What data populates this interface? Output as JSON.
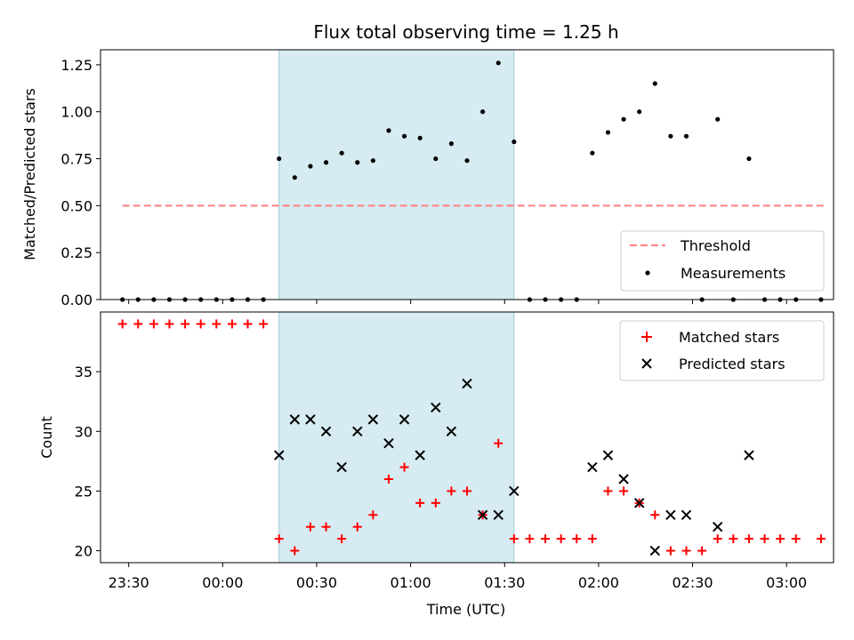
{
  "chart_data": [
    {
      "type": "scatter",
      "title": "Flux total observing time = 1.25 h",
      "ylabel": "Matched/Predicted stars",
      "xlabel": "",
      "xlim": [
        "23:21",
        "03:15"
      ],
      "ylim": [
        0,
        1.33
      ],
      "x_ticks": [
        "23:30",
        "00:00",
        "00:30",
        "01:00",
        "01:30",
        "02:00",
        "02:30",
        "03:00"
      ],
      "y_ticks": [
        "0.00",
        "0.25",
        "0.50",
        "0.75",
        "1.00",
        "1.25"
      ],
      "shaded_interval": [
        "00:18",
        "01:33"
      ],
      "legend_position": "lower right",
      "series": [
        {
          "name": "Threshold",
          "style": "dashed line",
          "color": "#ff7f7f",
          "points": [
            [
              "23:28",
              0.5
            ],
            [
              "03:12",
              0.5
            ]
          ]
        },
        {
          "name": "Measurements",
          "style": "dots",
          "color": "#000000",
          "points": [
            [
              "23:28",
              0.0
            ],
            [
              "23:33",
              0.0
            ],
            [
              "23:38",
              0.0
            ],
            [
              "23:43",
              0.0
            ],
            [
              "23:48",
              0.0
            ],
            [
              "23:53",
              0.0
            ],
            [
              "23:58",
              0.0
            ],
            [
              "00:03",
              0.0
            ],
            [
              "00:08",
              0.0
            ],
            [
              "00:13",
              0.0
            ],
            [
              "00:18",
              0.75
            ],
            [
              "00:23",
              0.65
            ],
            [
              "00:28",
              0.71
            ],
            [
              "00:33",
              0.73
            ],
            [
              "00:38",
              0.78
            ],
            [
              "00:43",
              0.73
            ],
            [
              "00:48",
              0.74
            ],
            [
              "00:53",
              0.9
            ],
            [
              "00:58",
              0.87
            ],
            [
              "01:03",
              0.86
            ],
            [
              "01:08",
              0.75
            ],
            [
              "01:13",
              0.83
            ],
            [
              "01:18",
              0.74
            ],
            [
              "01:23",
              1.0
            ],
            [
              "01:28",
              1.26
            ],
            [
              "01:33",
              0.84
            ],
            [
              "01:38",
              0.0
            ],
            [
              "01:43",
              0.0
            ],
            [
              "01:48",
              0.0
            ],
            [
              "01:53",
              0.0
            ],
            [
              "01:58",
              0.78
            ],
            [
              "02:03",
              0.89
            ],
            [
              "02:08",
              0.96
            ],
            [
              "02:13",
              1.0
            ],
            [
              "02:18",
              1.15
            ],
            [
              "02:23",
              0.87
            ],
            [
              "02:28",
              0.87
            ],
            [
              "02:33",
              0.0
            ],
            [
              "02:38",
              0.96
            ],
            [
              "02:43",
              0.0
            ],
            [
              "02:48",
              0.75
            ],
            [
              "02:53",
              0.0
            ],
            [
              "02:58",
              0.0
            ],
            [
              "03:03",
              0.0
            ],
            [
              "03:11",
              0.0
            ]
          ]
        }
      ]
    },
    {
      "type": "scatter",
      "title": "",
      "ylabel": "Count",
      "xlabel": "Time (UTC)",
      "xlim": [
        "23:21",
        "03:15"
      ],
      "ylim": [
        19,
        40
      ],
      "x_ticks": [
        "23:30",
        "00:00",
        "00:30",
        "01:00",
        "01:30",
        "02:00",
        "02:30",
        "03:00"
      ],
      "y_ticks": [
        "20",
        "25",
        "30",
        "35"
      ],
      "shaded_interval": [
        "00:18",
        "01:33"
      ],
      "legend_position": "upper right",
      "series": [
        {
          "name": "Matched stars",
          "marker": "plus",
          "color": "#ff0000",
          "points": [
            [
              "23:28",
              39
            ],
            [
              "23:33",
              39
            ],
            [
              "23:38",
              39
            ],
            [
              "23:43",
              39
            ],
            [
              "23:48",
              39
            ],
            [
              "23:53",
              39
            ],
            [
              "23:58",
              39
            ],
            [
              "00:03",
              39
            ],
            [
              "00:08",
              39
            ],
            [
              "00:13",
              39
            ],
            [
              "00:18",
              21
            ],
            [
              "00:23",
              20
            ],
            [
              "00:28",
              22
            ],
            [
              "00:33",
              22
            ],
            [
              "00:38",
              21
            ],
            [
              "00:43",
              22
            ],
            [
              "00:48",
              23
            ],
            [
              "00:53",
              26
            ],
            [
              "00:58",
              27
            ],
            [
              "01:03",
              24
            ],
            [
              "01:08",
              24
            ],
            [
              "01:13",
              25
            ],
            [
              "01:18",
              25
            ],
            [
              "01:23",
              23
            ],
            [
              "01:28",
              29
            ],
            [
              "01:33",
              21
            ],
            [
              "01:38",
              21
            ],
            [
              "01:43",
              21
            ],
            [
              "01:48",
              21
            ],
            [
              "01:53",
              21
            ],
            [
              "01:58",
              21
            ],
            [
              "02:03",
              25
            ],
            [
              "02:08",
              25
            ],
            [
              "02:13",
              24
            ],
            [
              "02:18",
              23
            ],
            [
              "02:23",
              20
            ],
            [
              "02:28",
              20
            ],
            [
              "02:33",
              20
            ],
            [
              "02:38",
              21
            ],
            [
              "02:43",
              21
            ],
            [
              "02:48",
              21
            ],
            [
              "02:53",
              21
            ],
            [
              "02:58",
              21
            ],
            [
              "03:03",
              21
            ],
            [
              "03:11",
              21
            ]
          ]
        },
        {
          "name": "Predicted stars",
          "marker": "x",
          "color": "#000000",
          "points": [
            [
              "00:18",
              28
            ],
            [
              "00:23",
              31
            ],
            [
              "00:28",
              31
            ],
            [
              "00:33",
              30
            ],
            [
              "00:38",
              27
            ],
            [
              "00:43",
              30
            ],
            [
              "00:48",
              31
            ],
            [
              "00:53",
              29
            ],
            [
              "00:58",
              31
            ],
            [
              "01:03",
              28
            ],
            [
              "01:08",
              32
            ],
            [
              "01:13",
              30
            ],
            [
              "01:18",
              34
            ],
            [
              "01:23",
              23
            ],
            [
              "01:28",
              23
            ],
            [
              "01:33",
              25
            ],
            [
              "01:58",
              27
            ],
            [
              "02:03",
              28
            ],
            [
              "02:08",
              26
            ],
            [
              "02:13",
              24
            ],
            [
              "02:18",
              20
            ],
            [
              "02:23",
              23
            ],
            [
              "02:28",
              23
            ],
            [
              "02:38",
              22
            ],
            [
              "02:48",
              28
            ]
          ]
        }
      ]
    }
  ]
}
